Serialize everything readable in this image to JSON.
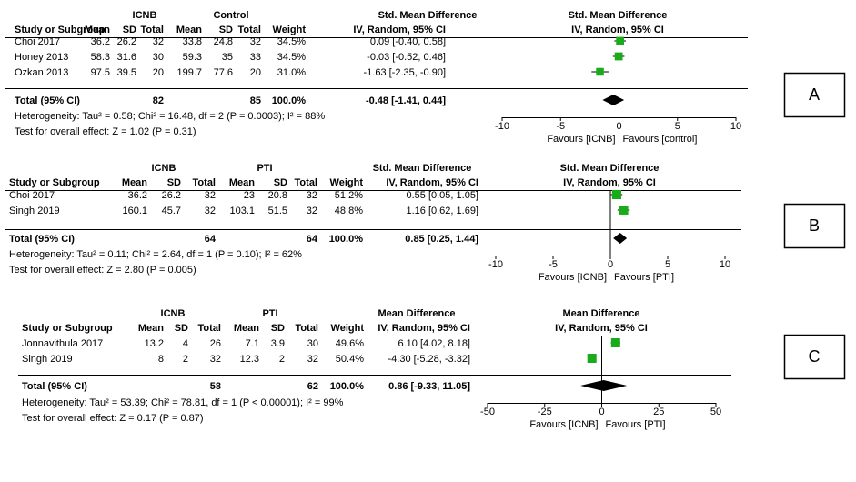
{
  "panels": [
    {
      "label": "A",
      "measure": "Std. Mean Difference",
      "method": "IV, Random, 95% CI",
      "header": {
        "study": "Study or Subgroup",
        "group1": "ICNB",
        "group2": "Control",
        "mean": "Mean",
        "sd": "SD",
        "total": "Total",
        "weight": "Weight"
      },
      "studies": [
        {
          "name": "Choi 2017",
          "m1": "36.2",
          "sd1": "26.2",
          "n1": "32",
          "m2": "33.8",
          "sd2": "24.8",
          "n2": "32",
          "weight": "34.5%",
          "ci": "0.09 [-0.40, 0.58]",
          "est": 0.09,
          "lo": -0.4,
          "hi": 0.58,
          "w": 34.5
        },
        {
          "name": "Honey 2013",
          "m1": "58.3",
          "sd1": "31.6",
          "n1": "30",
          "m2": "59.3",
          "sd2": "35",
          "n2": "33",
          "weight": "34.5%",
          "ci": "-0.03 [-0.52, 0.46]",
          "est": -0.03,
          "lo": -0.52,
          "hi": 0.46,
          "w": 34.5
        },
        {
          "name": "Ozkan 2013",
          "m1": "97.5",
          "sd1": "39.5",
          "n1": "20",
          "m2": "199.7",
          "sd2": "77.6",
          "n2": "20",
          "weight": "31.0%",
          "ci": "-1.63 [-2.35, -0.90]",
          "est": -1.63,
          "lo": -2.35,
          "hi": -0.9,
          "w": 31.0
        }
      ],
      "total": {
        "label": "Total (95% CI)",
        "n1": "82",
        "n2": "85",
        "weight": "100.0%",
        "ci": "-0.48 [-1.41, 0.44]",
        "est": -0.48,
        "lo": -1.41,
        "hi": 0.44
      },
      "heterogeneity": "Heterogeneity: Tau² = 0.58; Chi² = 16.48, df = 2 (P = 0.0003); I² = 88%",
      "overall": "Test for overall effect: Z = 1.02 (P = 0.31)",
      "axis": {
        "min": -10,
        "max": 10,
        "ticks": [
          -10,
          -5,
          0,
          5,
          10
        ],
        "tick_labels": [
          "-10",
          "-5",
          "0",
          "5",
          "10"
        ]
      },
      "favours_left": "Favours [ICNB]",
      "favours_right": "Favours [control]"
    },
    {
      "label": "B",
      "measure": "Std. Mean Difference",
      "method": "IV, Random, 95% CI",
      "header": {
        "study": "Study or Subgroup",
        "group1": "ICNB",
        "group2": "PTI",
        "mean": "Mean",
        "sd": "SD",
        "total": "Total",
        "weight": "Weight"
      },
      "studies": [
        {
          "name": "Choi 2017",
          "m1": "36.2",
          "sd1": "26.2",
          "n1": "32",
          "m2": "23",
          "sd2": "20.8",
          "n2": "32",
          "weight": "51.2%",
          "ci": "0.55 [0.05, 1.05]",
          "est": 0.55,
          "lo": 0.05,
          "hi": 1.05,
          "w": 51.2
        },
        {
          "name": "Singh 2019",
          "m1": "160.1",
          "sd1": "45.7",
          "n1": "32",
          "m2": "103.1",
          "sd2": "51.5",
          "n2": "32",
          "weight": "48.8%",
          "ci": "1.16 [0.62, 1.69]",
          "est": 1.16,
          "lo": 0.62,
          "hi": 1.69,
          "w": 48.8
        }
      ],
      "total": {
        "label": "Total (95% CI)",
        "n1": "64",
        "n2": "64",
        "weight": "100.0%",
        "ci": "0.85 [0.25, 1.44]",
        "est": 0.85,
        "lo": 0.25,
        "hi": 1.44
      },
      "heterogeneity": "Heterogeneity: Tau² = 0.11; Chi² = 2.64, df = 1 (P = 0.10); I² = 62%",
      "overall": "Test for overall effect: Z = 2.80 (P = 0.005)",
      "axis": {
        "min": -10,
        "max": 10,
        "ticks": [
          -10,
          -5,
          0,
          5,
          10
        ],
        "tick_labels": [
          "-10",
          "-5",
          "0",
          "5",
          "10"
        ]
      },
      "favours_left": "Favours [ICNB]",
      "favours_right": "Favours [PTI]"
    },
    {
      "label": "C",
      "measure": "Mean Difference",
      "method": "IV, Random, 95% CI",
      "header": {
        "study": "Study or Subgroup",
        "group1": "ICNB",
        "group2": "PTI",
        "mean": "Mean",
        "sd": "SD",
        "total": "Total",
        "weight": "Weight"
      },
      "studies": [
        {
          "name": "Jonnavithula 2017",
          "m1": "13.2",
          "sd1": "4",
          "n1": "26",
          "m2": "7.1",
          "sd2": "3.9",
          "n2": "30",
          "weight": "49.6%",
          "ci": "6.10 [4.02, 8.18]",
          "est": 6.1,
          "lo": 4.02,
          "hi": 8.18,
          "w": 49.6
        },
        {
          "name": "Singh 2019",
          "m1": "8",
          "sd1": "2",
          "n1": "32",
          "m2": "12.3",
          "sd2": "2",
          "n2": "32",
          "weight": "50.4%",
          "ci": "-4.30 [-5.28, -3.32]",
          "est": -4.3,
          "lo": -5.28,
          "hi": -3.32,
          "w": 50.4
        }
      ],
      "total": {
        "label": "Total (95% CI)",
        "n1": "58",
        "n2": "62",
        "weight": "100.0%",
        "ci": "0.86 [-9.33, 11.05]",
        "est": 0.86,
        "lo": -9.33,
        "hi": 11.05
      },
      "heterogeneity": "Heterogeneity: Tau² = 53.39; Chi² = 78.81, df = 1 (P < 0.00001); I² = 99%",
      "overall": "Test for overall effect: Z = 0.17 (P = 0.87)",
      "axis": {
        "min": -50,
        "max": 50,
        "ticks": [
          -50,
          -25,
          0,
          25,
          50
        ],
        "tick_labels": [
          "-50",
          "-25",
          "0",
          "25",
          "50"
        ]
      },
      "favours_left": "Favours [ICNB]",
      "favours_right": "Favours [PTI]"
    }
  ],
  "colors": {
    "marker": "#1aab1a",
    "diamond": "#000000",
    "line": "#000000"
  },
  "chart_data": [
    {
      "type": "forest",
      "panel": "A",
      "measure": "Std. Mean Difference",
      "studies": [
        "Choi 2017",
        "Honey 2013",
        "Ozkan 2013"
      ],
      "estimate": [
        0.09,
        -0.03,
        -1.63
      ],
      "ci_low": [
        -0.4,
        -0.52,
        -2.35
      ],
      "ci_high": [
        0.58,
        0.46,
        -0.9
      ],
      "weight": [
        34.5,
        34.5,
        31.0
      ],
      "pooled": {
        "estimate": -0.48,
        "ci": [
          -1.41,
          0.44
        ]
      },
      "xlim": [
        -10,
        10
      ]
    },
    {
      "type": "forest",
      "panel": "B",
      "measure": "Std. Mean Difference",
      "studies": [
        "Choi 2017",
        "Singh 2019"
      ],
      "estimate": [
        0.55,
        1.16
      ],
      "ci_low": [
        0.05,
        0.62
      ],
      "ci_high": [
        1.05,
        1.69
      ],
      "weight": [
        51.2,
        48.8
      ],
      "pooled": {
        "estimate": 0.85,
        "ci": [
          0.25,
          1.44
        ]
      },
      "xlim": [
        -10,
        10
      ]
    },
    {
      "type": "forest",
      "panel": "C",
      "measure": "Mean Difference",
      "studies": [
        "Jonnavithula 2017",
        "Singh 2019"
      ],
      "estimate": [
        6.1,
        -4.3
      ],
      "ci_low": [
        4.02,
        -5.28
      ],
      "ci_high": [
        8.18,
        -3.32
      ],
      "weight": [
        49.6,
        50.4
      ],
      "pooled": {
        "estimate": 0.86,
        "ci": [
          -9.33,
          11.05
        ]
      },
      "xlim": [
        -50,
        50
      ]
    }
  ]
}
